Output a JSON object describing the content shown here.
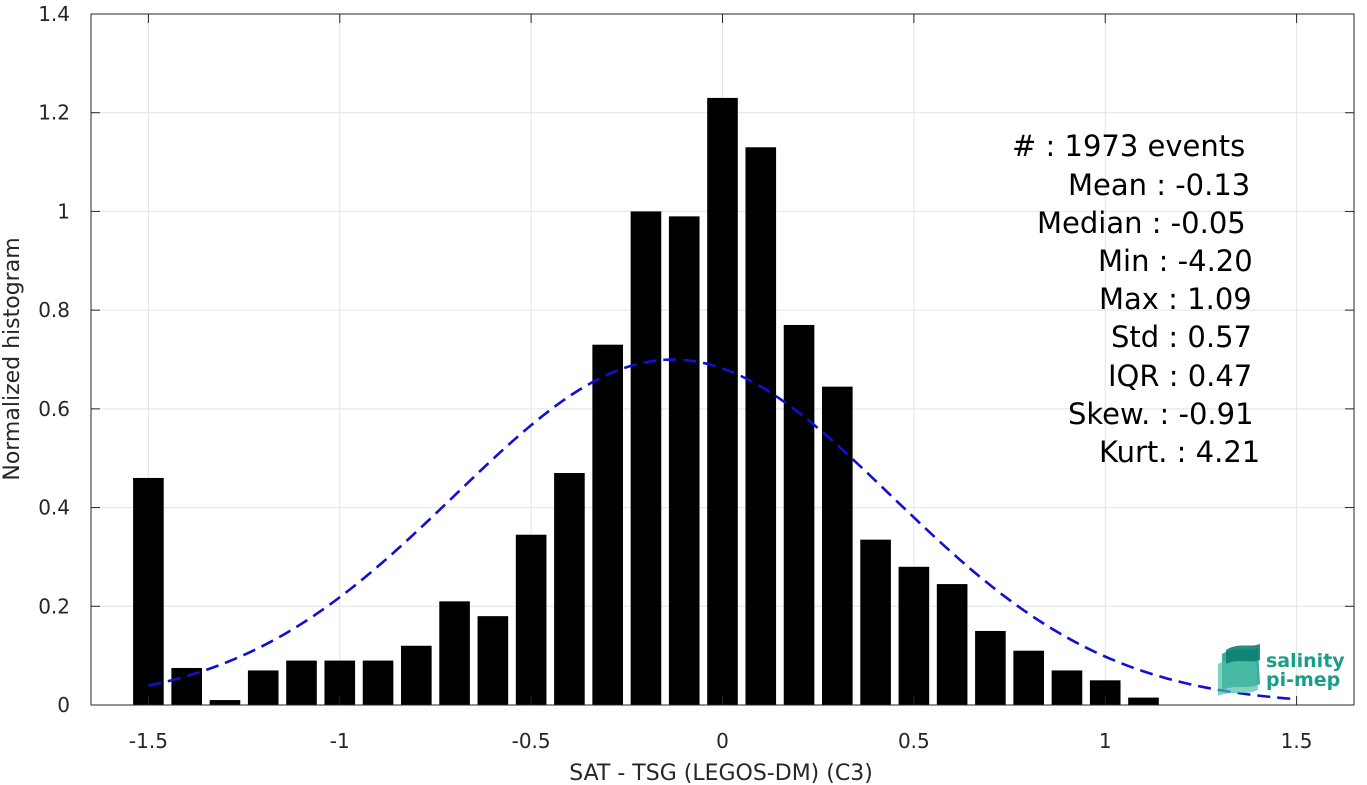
{
  "chart_data": {
    "type": "bar",
    "xlabel": "SAT - TSG (LEGOS-DM) (C3)",
    "ylabel": "Normalized histogram",
    "xlim": [
      -1.65,
      1.65
    ],
    "ylim": [
      0,
      1.4
    ],
    "xticks": [
      -1.5,
      -1,
      -0.5,
      0,
      0.5,
      1,
      1.5
    ],
    "xtick_labels": [
      "-1.5",
      "-1",
      "-0.5",
      "0",
      "0.5",
      "1",
      "1.5"
    ],
    "yticks": [
      0,
      0.2,
      0.4,
      0.6,
      0.8,
      1,
      1.2,
      1.4
    ],
    "ytick_labels": [
      "0",
      "0.2",
      "0.4",
      "0.6",
      "0.8",
      "1",
      "1.2",
      "1.4"
    ],
    "grid": true,
    "bar_color": "#000000",
    "bin_width": 0.1,
    "bars": {
      "x": [
        -1.5,
        -1.4,
        -1.3,
        -1.2,
        -1.1,
        -1.0,
        -0.9,
        -0.8,
        -0.7,
        -0.6,
        -0.5,
        -0.4,
        -0.3,
        -0.2,
        -0.1,
        0.0,
        0.1,
        0.2,
        0.3,
        0.4,
        0.5,
        0.6,
        0.7,
        0.8,
        0.9,
        1.0,
        1.1
      ],
      "values": [
        0.46,
        0.075,
        0.01,
        0.07,
        0.09,
        0.09,
        0.09,
        0.12,
        0.21,
        0.18,
        0.345,
        0.47,
        0.73,
        1.0,
        0.99,
        1.23,
        1.13,
        0.77,
        0.645,
        0.335,
        0.28,
        0.245,
        0.15,
        0.11,
        0.07,
        0.05,
        0.015
      ]
    },
    "fit_curve": {
      "type": "gaussian",
      "mean": -0.13,
      "std": 0.57,
      "x_range": [
        -1.5,
        1.5
      ],
      "color": "#1010d0",
      "style": "dashed"
    },
    "annotations": [
      {
        "id": "count",
        "text": "#  : 1973 events"
      },
      {
        "id": "mean",
        "text": "Mean : -0.13"
      },
      {
        "id": "median",
        "text": "Median : -0.05"
      },
      {
        "id": "min",
        "text": "Min : -4.20"
      },
      {
        "id": "max",
        "text": "Max : 1.09"
      },
      {
        "id": "std",
        "text": "Std : 0.57"
      },
      {
        "id": "iqr",
        "text": "IQR : 0.47"
      },
      {
        "id": "skew",
        "text": "Skew. : -0.91"
      },
      {
        "id": "kurt",
        "text": "Kurt. : 4.21"
      }
    ]
  },
  "logo": {
    "line1": "salinity",
    "line2": "pi-mep",
    "color": "#1a9e8a",
    "icon": "salinity-wave-icon"
  }
}
